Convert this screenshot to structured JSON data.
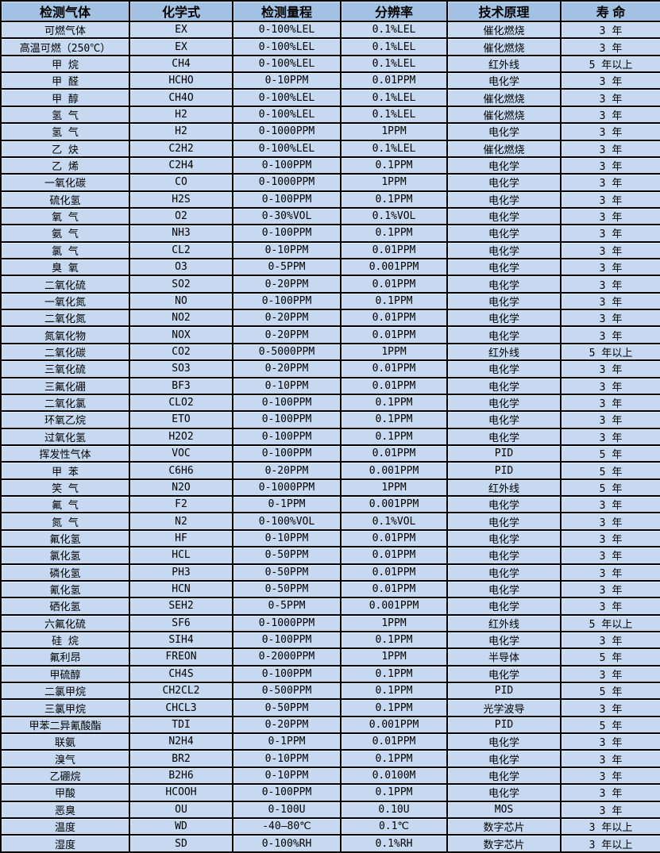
{
  "colors": {
    "header_bg": "#a3c1e2",
    "row_bg": "#c6d9f1",
    "border": "#000000",
    "text": "#000000"
  },
  "table": {
    "columns": [
      "检测气体",
      "化学式",
      "检测量程",
      "分辨率",
      "技术原理",
      "寿 命"
    ],
    "column_keys": [
      "gas",
      "formula",
      "range",
      "resolution",
      "principle",
      "lifespan"
    ],
    "rows": [
      [
        "可燃气体",
        "EX",
        "0-100%LEL",
        "0.1%LEL",
        "催化燃烧",
        "3 年"
      ],
      [
        "高温可燃（250℃）",
        "EX",
        "0-100%LEL",
        "0.1%LEL",
        "催化燃烧",
        "3 年"
      ],
      [
        "甲 烷",
        "CH4",
        "0-100%LEL",
        "0.1%LEL",
        "红外线",
        "5 年以上"
      ],
      [
        "甲 醛",
        "HCHO",
        "0-10PPM",
        "0.01PPM",
        "电化学",
        "3 年"
      ],
      [
        "甲 醇",
        "CH4O",
        "0-100%LEL",
        "0.1%LEL",
        "催化燃烧",
        "3 年"
      ],
      [
        "氢 气",
        "H2",
        "0-100%LEL",
        "0.1%LEL",
        "催化燃烧",
        "3 年"
      ],
      [
        "氢 气",
        "H2",
        "0-1000PPM",
        "1PPM",
        "电化学",
        "3 年"
      ],
      [
        "乙 炔",
        "C2H2",
        "0-100%LEL",
        "0.1%LEL",
        "催化燃烧",
        "3 年"
      ],
      [
        "乙 烯",
        "C2H4",
        "0-100PPM",
        "0.1PPM",
        "电化学",
        "3 年"
      ],
      [
        "一氧化碳",
        "CO",
        "0-1000PPM",
        "1PPM",
        "电化学",
        "3 年"
      ],
      [
        "硫化氢",
        "H2S",
        "0-100PPM",
        "0.1PPM",
        "电化学",
        "3 年"
      ],
      [
        "氧 气",
        "O2",
        "0-30%VOL",
        "0.1%VOL",
        "电化学",
        "3 年"
      ],
      [
        "氨 气",
        "NH3",
        "0-100PPM",
        "0.1PPM",
        "电化学",
        "3 年"
      ],
      [
        "氯 气",
        "CL2",
        "0-10PPM",
        "0.01PPM",
        "电化学",
        "3 年"
      ],
      [
        "臭 氧",
        "O3",
        "0-5PPM",
        "0.001PPM",
        "电化学",
        "3 年"
      ],
      [
        "二氧化硫",
        "SO2",
        "0-20PPM",
        "0.01PPM",
        "电化学",
        "3 年"
      ],
      [
        "一氧化氮",
        "NO",
        "0-100PPM",
        "0.1PPM",
        "电化学",
        "3 年"
      ],
      [
        "二氧化氮",
        "NO2",
        "0-20PPM",
        "0.01PPM",
        "电化学",
        "3 年"
      ],
      [
        "氮氧化物",
        "NOX",
        "0-20PPM",
        "0.01PPM",
        "电化学",
        "3 年"
      ],
      [
        "二氧化碳",
        "CO2",
        "0-5000PPM",
        "1PPM",
        "红外线",
        "5 年以上"
      ],
      [
        "三氧化硫",
        "SO3",
        "0-20PPM",
        "0.01PPM",
        "电化学",
        "3 年"
      ],
      [
        "三氟化硼",
        "BF3",
        "0-10PPM",
        "0.01PPM",
        "电化学",
        "3 年"
      ],
      [
        "二氧化氯",
        "CLO2",
        "0-100PPM",
        "0.1PPM",
        "电化学",
        "3 年"
      ],
      [
        "环氧乙烷",
        "ETO",
        "0-100PPM",
        "0.1PPM",
        "电化学",
        "3 年"
      ],
      [
        "过氧化氢",
        "H2O2",
        "0-100PPM",
        "0.1PPM",
        "电化学",
        "3 年"
      ],
      [
        "挥发性气体",
        "VOC",
        "0-100PPM",
        "0.01PPM",
        "PID",
        "5 年"
      ],
      [
        "甲 苯",
        "C6H6",
        "0-20PPM",
        "0.001PPM",
        "PID",
        "5 年"
      ],
      [
        "笑 气",
        "N2O",
        "0-1000PPM",
        "1PPM",
        "红外线",
        "5 年"
      ],
      [
        "氟 气",
        "F2",
        "0-1PPM",
        "0.001PPM",
        "电化学",
        "3 年"
      ],
      [
        "氮 气",
        "N2",
        "0-100%VOL",
        "0.1%VOL",
        "电化学",
        "3 年"
      ],
      [
        "氟化氢",
        "HF",
        "0-10PPM",
        "0.01PPM",
        "电化学",
        "3 年"
      ],
      [
        "氯化氢",
        "HCL",
        "0-50PPM",
        "0.01PPM",
        "电化学",
        "3 年"
      ],
      [
        "磷化氢",
        "PH3",
        "0-50PPM",
        "0.01PPM",
        "电化学",
        "3 年"
      ],
      [
        "氰化氢",
        "HCN",
        "0-50PPM",
        "0.01PPM",
        "电化学",
        "3 年"
      ],
      [
        "硒化氢",
        "SEH2",
        "0-5PPM",
        "0.001PPM",
        "电化学",
        "3 年"
      ],
      [
        "六氟化硫",
        "SF6",
        "0-1000PPM",
        "1PPM",
        "红外线",
        "5 年以上"
      ],
      [
        "硅 烷",
        "SIH4",
        "0-100PPM",
        "0.1PPM",
        "电化学",
        "3 年"
      ],
      [
        "氟利昂",
        "FREON",
        "0-2000PPM",
        "1PPM",
        "半导体",
        "5 年"
      ],
      [
        "甲硫醇",
        "CH4S",
        "0-100PPM",
        "0.1PPM",
        "电化学",
        "3 年"
      ],
      [
        "二氯甲烷",
        "CH2CL2",
        "0-500PPM",
        "0.1PPM",
        "PID",
        "5 年"
      ],
      [
        "三氯甲烷",
        "CHCL3",
        "0-50PPM",
        "0.1PPM",
        "光学波导",
        "3 年"
      ],
      [
        "甲苯二异氰酸酯",
        "TDI",
        "0-20PPM",
        "0.001PPM",
        "PID",
        "5 年"
      ],
      [
        "联氨",
        "N2H4",
        "0-1PPM",
        "0.01PPM",
        "电化学",
        "3 年"
      ],
      [
        "溴气",
        "BR2",
        "0-10PPM",
        "0.1PPM",
        "电化学",
        "3 年"
      ],
      [
        "乙硼烷",
        "B2H6",
        "0-10PPM",
        "0.0100M",
        "电化学",
        "3 年"
      ],
      [
        "甲酸",
        "HCOOH",
        "0-100PPM",
        "0.1PPM",
        "电化学",
        "3 年"
      ],
      [
        "恶臭",
        "OU",
        "0-100U",
        "0.10U",
        "MOS",
        "3 年"
      ],
      [
        "温度",
        "WD",
        "-40—80℃",
        "0.1℃",
        "数字芯片",
        "3 年以上"
      ],
      [
        "湿度",
        "SD",
        "0-100%RH",
        "0.1%RH",
        "数字芯片",
        "3 年以上"
      ]
    ]
  }
}
